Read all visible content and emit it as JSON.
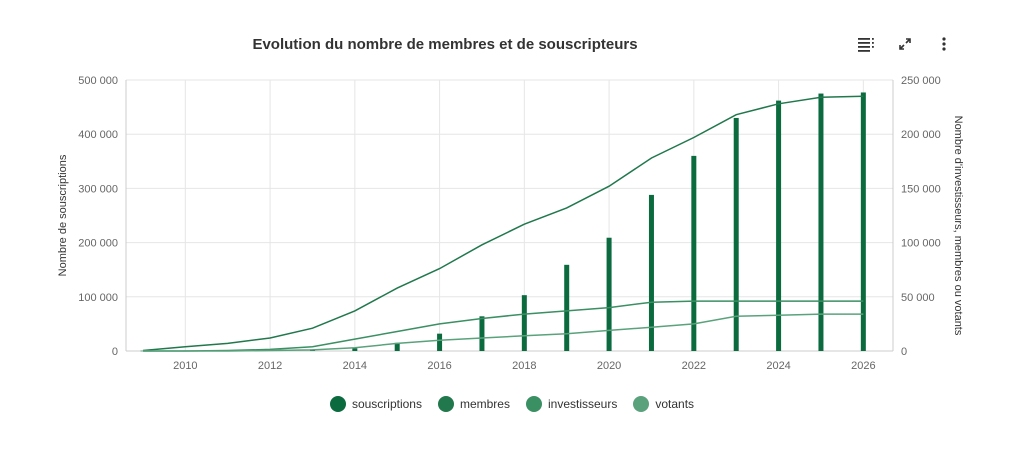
{
  "toolbar": {
    "list_icon": "list-icon",
    "expand_icon": "expand-icon",
    "more_icon": "more-vertical-icon"
  },
  "colors": {
    "souscriptions": "#0b6b3f",
    "membres": "#20784c",
    "investisseurs": "#3a8f63",
    "votants": "#5aa27c",
    "grid": "#e6e6e6",
    "axis": "#cccccc"
  },
  "legend": [
    {
      "key": "souscriptions",
      "label": "souscriptions"
    },
    {
      "key": "membres",
      "label": "membres"
    },
    {
      "key": "investisseurs",
      "label": "investisseurs"
    },
    {
      "key": "votants",
      "label": "votants"
    }
  ],
  "chart_data": {
    "type": "bar",
    "title": "Evolution du nombre de membres et de souscripteurs",
    "x": [
      2009,
      2010,
      2011,
      2012,
      2013,
      2014,
      2015,
      2016,
      2017,
      2018,
      2019,
      2020,
      2021,
      2022,
      2023,
      2024,
      2025,
      2026
    ],
    "xlim": [
      2008.6,
      2026.7
    ],
    "x_ticks": [
      2010,
      2012,
      2014,
      2016,
      2018,
      2020,
      2022,
      2024,
      2026
    ],
    "ylabel_left": "Nombre de souscriptions",
    "ylabel_right": "Nombre d'investisseurs, membres ou votants",
    "ylim_left": [
      0,
      500000
    ],
    "ylim_right": [
      0,
      250000
    ],
    "y_ticks_left": [
      "0",
      "100 000",
      "200 000",
      "300 000",
      "400 000",
      "500 000"
    ],
    "y_ticks_right": [
      "0",
      "50 000",
      "100 000",
      "150 000",
      "200 000",
      "250 000"
    ],
    "grid": true,
    "legend_position": "bottom",
    "series": [
      {
        "name": "souscriptions",
        "type": "bar",
        "axis": "left",
        "values": [
          500,
          1000,
          1500,
          2000,
          3000,
          5000,
          15000,
          32000,
          64000,
          103000,
          159000,
          209000,
          288000,
          360000,
          430000,
          462000,
          475000,
          477000
        ]
      },
      {
        "name": "membres",
        "type": "line",
        "axis": "right",
        "values": [
          500,
          4000,
          7000,
          12000,
          21000,
          37000,
          58000,
          76000,
          98000,
          117000,
          132000,
          152000,
          178000,
          197000,
          218000,
          228000,
          234000,
          235000
        ]
      },
      {
        "name": "investisseurs",
        "type": "line",
        "axis": "right",
        "values": [
          0,
          0,
          500,
          1500,
          4000,
          11000,
          18000,
          25000,
          30000,
          34000,
          37000,
          40000,
          45000,
          46000,
          46000,
          46000,
          46000,
          46000
        ]
      },
      {
        "name": "votants",
        "type": "line",
        "axis": "right",
        "values": [
          0,
          0,
          0,
          500,
          1000,
          3000,
          7000,
          10000,
          12000,
          14000,
          16000,
          19000,
          22000,
          25000,
          32000,
          33000,
          34000,
          34000
        ]
      }
    ]
  }
}
